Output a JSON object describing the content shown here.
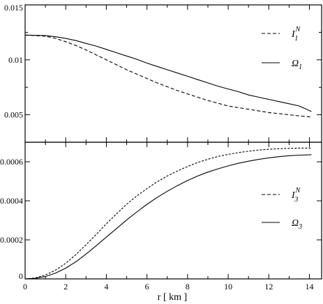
{
  "chart_data": [
    {
      "type": "line",
      "panel": "top",
      "xlim": [
        0,
        14.6
      ],
      "ylim": [
        0.0025,
        0.015
      ],
      "yticks": [
        0.005,
        0.01,
        0.015
      ],
      "ytick_labels": [
        "0.005",
        "0.01",
        "0.015"
      ],
      "minor_yticks": [
        0.0025,
        0.0075,
        0.0125
      ],
      "series": [
        {
          "legend_main": "I",
          "legend_sub": "1",
          "legend_sup": "N",
          "style": "dashed",
          "x": [
            0,
            0.5,
            1,
            1.5,
            2,
            2.5,
            3,
            3.5,
            4,
            4.5,
            5,
            5.5,
            6,
            6.5,
            7,
            7.5,
            8,
            8.5,
            9,
            9.5,
            10,
            10.5,
            11,
            11.5,
            12,
            12.5,
            13,
            13.5,
            14.1
          ],
          "y": [
            0.01225,
            0.0122,
            0.01215,
            0.01195,
            0.01165,
            0.0113,
            0.0109,
            0.01045,
            0.01,
            0.00955,
            0.0091,
            0.0087,
            0.0083,
            0.0079,
            0.00755,
            0.0072,
            0.0069,
            0.0066,
            0.0063,
            0.00605,
            0.0058,
            0.00565,
            0.0055,
            0.00535,
            0.0052,
            0.0051,
            0.005,
            0.0049,
            0.0048
          ]
        },
        {
          "legend_main": "Ω",
          "legend_sub": "1",
          "legend_sup": "",
          "style": "solid",
          "x": [
            0,
            0.5,
            1,
            1.5,
            2,
            2.5,
            3,
            3.5,
            4,
            4.5,
            5,
            5.5,
            6,
            6.5,
            7,
            7.5,
            8,
            8.5,
            9,
            9.5,
            10,
            10.5,
            11,
            11.5,
            12,
            12.5,
            13,
            13.5,
            14.1
          ],
          "y": [
            0.01225,
            0.01223,
            0.0122,
            0.0121,
            0.01195,
            0.01175,
            0.0115,
            0.01125,
            0.01095,
            0.01065,
            0.01035,
            0.01005,
            0.0097,
            0.0094,
            0.0091,
            0.0088,
            0.0085,
            0.0082,
            0.0079,
            0.0076,
            0.00735,
            0.0071,
            0.0068,
            0.0066,
            0.0064,
            0.0062,
            0.006,
            0.0058,
            0.0053
          ]
        }
      ]
    },
    {
      "type": "line",
      "panel": "bottom",
      "xlim": [
        0,
        14.6
      ],
      "ylim": [
        0,
        0.0007
      ],
      "xticks": [
        0,
        2,
        4,
        6,
        8,
        10,
        12,
        14
      ],
      "xtick_labels": [
        "0",
        "2",
        "4",
        "6",
        "8",
        "10",
        "12",
        "14"
      ],
      "yticks": [
        0,
        0.0002,
        0.0004,
        0.0006
      ],
      "ytick_labels": [
        "0",
        "0.0002",
        "0.0004",
        "0.0006"
      ],
      "xlabel": "r [ km ]",
      "series": [
        {
          "legend_main": "I",
          "legend_sub": "3",
          "legend_sup": "N",
          "style": "dashed",
          "x": [
            0,
            0.5,
            1,
            1.5,
            2,
            2.5,
            3,
            3.5,
            4,
            4.5,
            5,
            5.5,
            6,
            6.5,
            7,
            7.5,
            8,
            8.5,
            9,
            9.5,
            10,
            10.5,
            11,
            11.5,
            12,
            12.5,
            13,
            13.5,
            14.1
          ],
          "y": [
            0,
            5e-06,
            2e-05,
            4.5e-05,
            8e-05,
            0.000125,
            0.000175,
            0.000228,
            0.000282,
            0.000333,
            0.000382,
            0.000425,
            0.000463,
            0.000497,
            0.000527,
            0.000553,
            0.000576,
            0.000596,
            0.000613,
            0.000627,
            0.000638,
            0.000647,
            0.000654,
            0.00066,
            0.000664,
            0.000667,
            0.000669,
            0.00067,
            0.00067
          ]
        },
        {
          "legend_main": "Ω",
          "legend_sub": "3",
          "legend_sup": "",
          "style": "solid",
          "x": [
            0,
            0.5,
            1,
            1.5,
            2,
            2.5,
            3,
            3.5,
            4,
            4.5,
            5,
            5.5,
            6,
            6.5,
            7,
            7.5,
            8,
            8.5,
            9,
            9.5,
            10,
            10.5,
            11,
            11.5,
            12,
            12.5,
            13,
            13.5,
            14.1
          ],
          "y": [
            0,
            3e-06,
            1.2e-05,
            3e-05,
            5.5e-05,
            8.8e-05,
            0.000127,
            0.00017,
            0.000214,
            0.000258,
            0.000302,
            0.000343,
            0.000382,
            0.000417,
            0.000449,
            0.000478,
            0.000504,
            0.000527,
            0.000547,
            0.000564,
            0.000579,
            0.000592,
            0.000603,
            0.000612,
            0.00062,
            0.000626,
            0.000631,
            0.000634,
            0.000636
          ]
        }
      ]
    }
  ]
}
